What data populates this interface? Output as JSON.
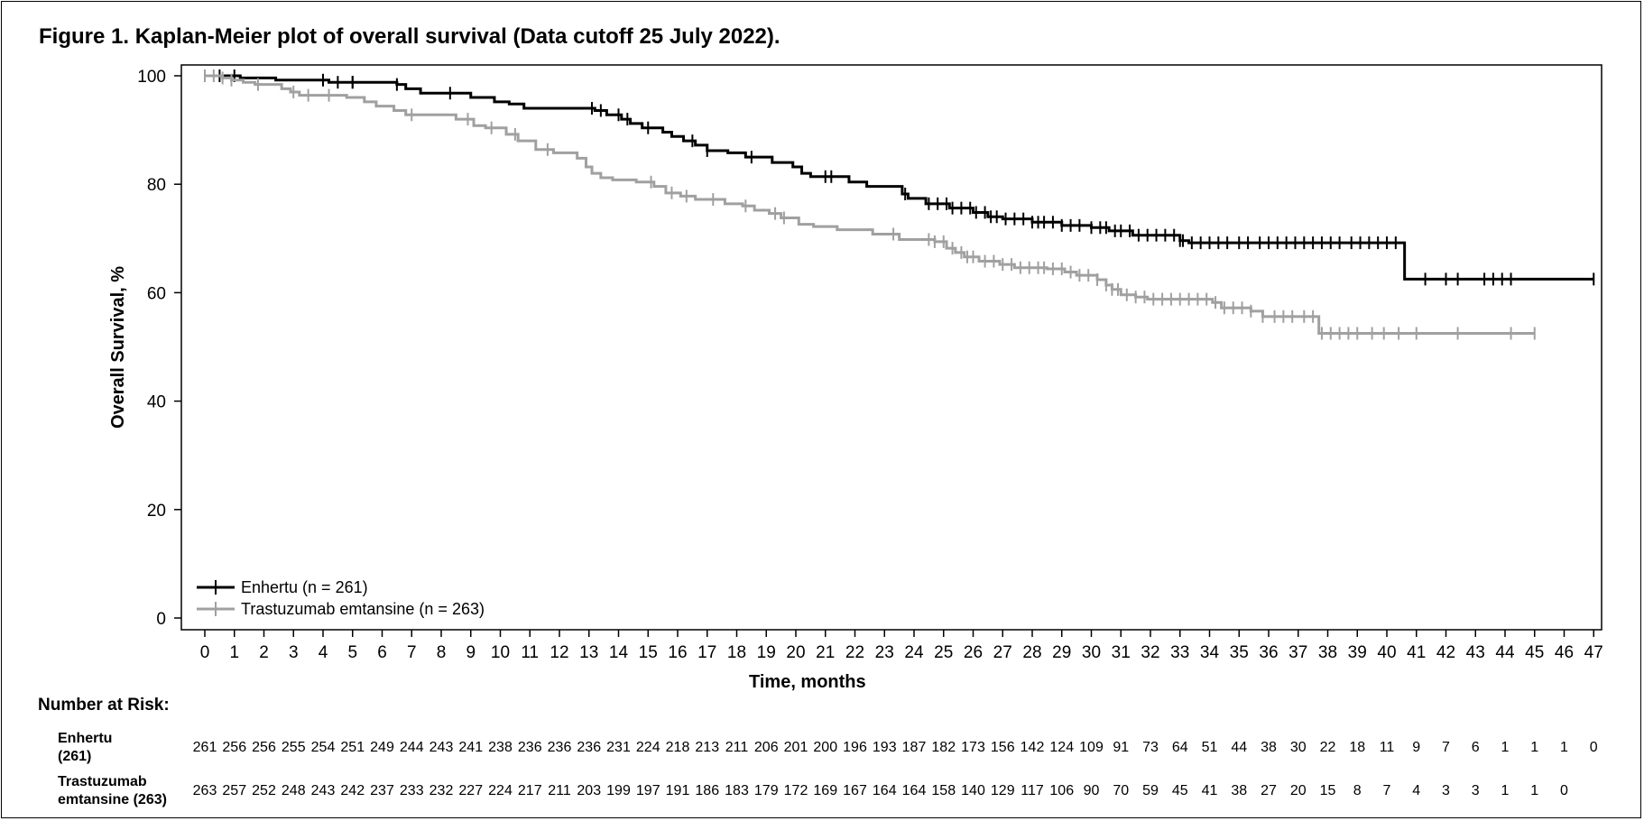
{
  "chart_data": {
    "type": "line",
    "title": "Figure 1. Kaplan-Meier plot of overall survival (Data cutoff 25 July 2022).",
    "xlabel": "Time, months",
    "ylabel": "Overall Survival, %",
    "xlim": [
      0,
      47
    ],
    "ylim": [
      0,
      100
    ],
    "x_ticks": [
      0,
      1,
      2,
      3,
      4,
      5,
      6,
      7,
      8,
      9,
      10,
      11,
      12,
      13,
      14,
      15,
      16,
      17,
      18,
      19,
      20,
      21,
      22,
      23,
      24,
      25,
      26,
      27,
      28,
      29,
      30,
      31,
      32,
      33,
      34,
      35,
      36,
      37,
      38,
      39,
      40,
      41,
      42,
      43,
      44,
      45,
      46,
      47
    ],
    "y_ticks": [
      0,
      20,
      40,
      60,
      80,
      100
    ],
    "legend_position": "bottom-left",
    "series": [
      {
        "name": "Enhertu (n = 261)",
        "color": "#000000",
        "steps": [
          [
            0,
            100
          ],
          [
            1.2,
            99.6
          ],
          [
            2.4,
            99.2
          ],
          [
            4.2,
            98.8
          ],
          [
            6.5,
            98.4
          ],
          [
            6.8,
            97.6
          ],
          [
            7.3,
            96.8
          ],
          [
            9,
            96
          ],
          [
            9.8,
            95.2
          ],
          [
            10.3,
            94.8
          ],
          [
            10.8,
            94
          ],
          [
            13.2,
            93.6
          ],
          [
            13.6,
            92.8
          ],
          [
            14.1,
            92
          ],
          [
            14.4,
            91.2
          ],
          [
            14.8,
            90.4
          ],
          [
            15.5,
            89.6
          ],
          [
            15.8,
            88.8
          ],
          [
            16.2,
            88
          ],
          [
            16.6,
            87.2
          ],
          [
            17,
            86.2
          ],
          [
            17.7,
            85.8
          ],
          [
            18.3,
            85
          ],
          [
            19.2,
            84
          ],
          [
            19.9,
            83.2
          ],
          [
            20.2,
            82
          ],
          [
            20.5,
            81.4
          ],
          [
            21.8,
            80.4
          ],
          [
            22.4,
            79.6
          ],
          [
            23.6,
            78.2
          ],
          [
            23.8,
            77.4
          ],
          [
            24.4,
            76.4
          ],
          [
            25.2,
            75.6
          ],
          [
            26,
            74.8
          ],
          [
            26.5,
            74
          ],
          [
            27,
            73.6
          ],
          [
            28,
            73
          ],
          [
            29,
            72.4
          ],
          [
            30,
            72
          ],
          [
            30.6,
            71.4
          ],
          [
            31.4,
            70.6
          ],
          [
            33,
            69.6
          ],
          [
            33.3,
            69.2
          ],
          [
            40.5,
            69.2
          ],
          [
            40.6,
            62.5
          ],
          [
            47,
            62.5
          ]
        ],
        "censored": [
          0.5,
          1,
          4,
          4.5,
          5,
          5,
          6.5,
          8.3,
          13.1,
          13.4,
          14,
          14.3,
          15,
          16.5,
          17,
          18.5,
          21,
          21.2,
          23.7,
          24.5,
          24.8,
          25.1,
          25.3,
          25.6,
          25.9,
          26.1,
          26.4,
          26.6,
          26.8,
          27.1,
          27.4,
          27.7,
          28,
          28.2,
          28.4,
          28.7,
          29,
          29.3,
          29.6,
          30,
          30.3,
          30.5,
          30.8,
          31,
          31.3,
          31.6,
          31.9,
          32.2,
          32.5,
          32.8,
          33,
          33.1,
          33.4,
          33.7,
          34,
          34.3,
          34.6,
          35,
          35.3,
          35.7,
          36,
          36.3,
          36.6,
          36.9,
          37.2,
          37.5,
          37.8,
          38.1,
          38.4,
          38.8,
          39.1,
          39.4,
          39.7,
          40,
          40.3,
          41.3,
          42,
          42.4,
          43.3,
          43.6,
          43.9,
          44.2,
          47
        ],
        "color_name": "black"
      },
      {
        "name": "Trastuzumab emtansine (n = 263)",
        "color": "#a0a0a0",
        "steps": [
          [
            0,
            100
          ],
          [
            0.6,
            99.6
          ],
          [
            0.9,
            99.2
          ],
          [
            1.3,
            98.8
          ],
          [
            1.7,
            98.4
          ],
          [
            2.6,
            97.6
          ],
          [
            2.9,
            97
          ],
          [
            3.2,
            96.4
          ],
          [
            4.8,
            96
          ],
          [
            5.4,
            95.2
          ],
          [
            5.8,
            94.4
          ],
          [
            6.4,
            93.6
          ],
          [
            6.8,
            92.8
          ],
          [
            8.5,
            92
          ],
          [
            9.1,
            90.8
          ],
          [
            9.5,
            90.4
          ],
          [
            10.2,
            89.2
          ],
          [
            10.6,
            88
          ],
          [
            11.2,
            86.4
          ],
          [
            11.8,
            85.8
          ],
          [
            12.6,
            84.8
          ],
          [
            12.9,
            83.2
          ],
          [
            13.1,
            82
          ],
          [
            13.4,
            81.2
          ],
          [
            13.8,
            80.8
          ],
          [
            14.6,
            80.4
          ],
          [
            15.2,
            79.6
          ],
          [
            15.6,
            78.4
          ],
          [
            16.1,
            77.8
          ],
          [
            16.6,
            77.2
          ],
          [
            17.6,
            76.4
          ],
          [
            18.2,
            76
          ],
          [
            18.6,
            75.2
          ],
          [
            19.1,
            74.6
          ],
          [
            19.5,
            73.8
          ],
          [
            20.1,
            72.6
          ],
          [
            20.6,
            72.2
          ],
          [
            21.4,
            71.6
          ],
          [
            22.6,
            70.8
          ],
          [
            23.5,
            69.8
          ],
          [
            24.7,
            69.4
          ],
          [
            25.1,
            68.2
          ],
          [
            25.4,
            67.4
          ],
          [
            25.7,
            66.6
          ],
          [
            26.2,
            65.8
          ],
          [
            26.9,
            65.2
          ],
          [
            27.4,
            64.6
          ],
          [
            28.5,
            64.4
          ],
          [
            29.1,
            63.8
          ],
          [
            29.5,
            63.2
          ],
          [
            30.2,
            62.4
          ],
          [
            30.5,
            61.4
          ],
          [
            30.7,
            60.6
          ],
          [
            31,
            59.6
          ],
          [
            31.5,
            59.2
          ],
          [
            31.9,
            58.8
          ],
          [
            34.1,
            58.2
          ],
          [
            34.4,
            57.2
          ],
          [
            35.4,
            56.6
          ],
          [
            35.8,
            55.6
          ],
          [
            37.6,
            55.6
          ],
          [
            37.7,
            52.5
          ],
          [
            45,
            52.5
          ]
        ],
        "censored": [
          0,
          0.3,
          0.6,
          0.9,
          1.8,
          3,
          3.5,
          4.2,
          7,
          8.9,
          9.7,
          10.5,
          11.6,
          15.1,
          15.8,
          16.3,
          17.2,
          18.3,
          19.3,
          19.6,
          23.3,
          24.5,
          24.7,
          25,
          25.3,
          25.6,
          25.8,
          26,
          26.4,
          26.7,
          27,
          27.3,
          27.6,
          27.9,
          28.2,
          28.4,
          28.7,
          29,
          29.3,
          29.6,
          29.9,
          30.2,
          30.5,
          30.7,
          30.9,
          31.2,
          31.5,
          31.8,
          32.1,
          32.4,
          32.7,
          33,
          33.3,
          33.6,
          33.9,
          34.2,
          34.5,
          34.8,
          35.1,
          35.4,
          35.8,
          36.2,
          36.5,
          36.8,
          37.2,
          37.5,
          37.8,
          38.1,
          38.4,
          38.7,
          39,
          39.5,
          39.9,
          40.4,
          41,
          42.4,
          44.2,
          45
        ],
        "color_name": "gray"
      }
    ]
  },
  "risk_table": {
    "heading": "Number at Risk:",
    "rows": [
      {
        "label_line1": "Enhertu",
        "label_line2": "(261)",
        "values": [
          "261",
          "256",
          "256",
          "255",
          "254",
          "251",
          "249",
          "244",
          "243",
          "241",
          "238",
          "236",
          "236",
          "236",
          "231",
          "224",
          "218",
          "213",
          "211",
          "206",
          "201",
          "200",
          "196",
          "193",
          "187",
          "182",
          "173",
          "156",
          "142",
          "124",
          "109",
          "91",
          "73",
          "64",
          "51",
          "44",
          "38",
          "30",
          "22",
          "18",
          "11",
          "9",
          "7",
          "6",
          "1",
          "1",
          "1",
          "0"
        ]
      },
      {
        "label_line1": "Trastuzumab",
        "label_line2": "emtansine (263)",
        "values": [
          "263",
          "257",
          "252",
          "248",
          "243",
          "242",
          "237",
          "233",
          "232",
          "227",
          "224",
          "217",
          "211",
          "203",
          "199",
          "197",
          "191",
          "186",
          "183",
          "179",
          "172",
          "169",
          "167",
          "164",
          "164",
          "158",
          "140",
          "129",
          "117",
          "106",
          "90",
          "70",
          "59",
          "45",
          "41",
          "38",
          "27",
          "20",
          "15",
          "8",
          "7",
          "4",
          "3",
          "3",
          "1",
          "1",
          "0"
        ]
      }
    ]
  }
}
